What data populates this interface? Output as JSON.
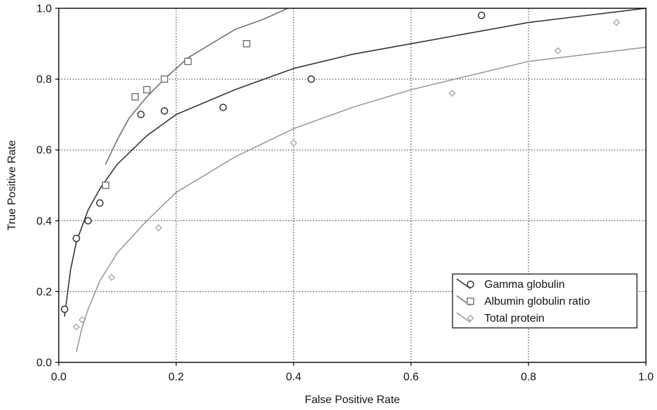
{
  "chart_data": {
    "type": "scatter",
    "title": "",
    "xlabel": "False Positive Rate",
    "ylabel": "True Positive Rate",
    "xlim": [
      0,
      1
    ],
    "ylim": [
      0,
      1
    ],
    "x_ticks": [
      "0.0",
      "0.2",
      "0.4",
      "0.6",
      "0.8",
      "1.0"
    ],
    "y_ticks": [
      "0.0",
      "0.2",
      "0.4",
      "0.6",
      "0.8",
      "1.0"
    ],
    "grid": true,
    "legend_position": "bottom-right",
    "series": [
      {
        "name": "Gamma globulin",
        "marker": "circle",
        "color": "#333333",
        "points": [
          [
            0.01,
            0.15
          ],
          [
            0.03,
            0.35
          ],
          [
            0.05,
            0.4
          ],
          [
            0.07,
            0.45
          ],
          [
            0.14,
            0.7
          ],
          [
            0.18,
            0.71
          ],
          [
            0.28,
            0.72
          ],
          [
            0.43,
            0.8
          ],
          [
            0.72,
            0.98
          ]
        ],
        "fit_curve": [
          [
            0.01,
            0.13
          ],
          [
            0.02,
            0.26
          ],
          [
            0.03,
            0.34
          ],
          [
            0.05,
            0.43
          ],
          [
            0.07,
            0.49
          ],
          [
            0.1,
            0.56
          ],
          [
            0.15,
            0.64
          ],
          [
            0.2,
            0.7
          ],
          [
            0.3,
            0.77
          ],
          [
            0.4,
            0.83
          ],
          [
            0.5,
            0.87
          ],
          [
            0.6,
            0.9
          ],
          [
            0.7,
            0.93
          ],
          [
            0.8,
            0.96
          ],
          [
            0.9,
            0.98
          ],
          [
            1.0,
            1.0
          ]
        ]
      },
      {
        "name": "Albumin globulin ratio",
        "marker": "square",
        "color": "#6f6f6f",
        "points": [
          [
            0.08,
            0.5
          ],
          [
            0.13,
            0.75
          ],
          [
            0.15,
            0.77
          ],
          [
            0.18,
            0.8
          ],
          [
            0.22,
            0.85
          ],
          [
            0.32,
            0.9
          ]
        ],
        "fit_curve": [
          [
            0.08,
            0.56
          ],
          [
            0.1,
            0.63
          ],
          [
            0.12,
            0.69
          ],
          [
            0.15,
            0.75
          ],
          [
            0.18,
            0.8
          ],
          [
            0.22,
            0.86
          ],
          [
            0.26,
            0.9
          ],
          [
            0.3,
            0.94
          ],
          [
            0.35,
            0.97
          ],
          [
            0.39,
            1.0
          ]
        ]
      },
      {
        "name": "Total protein",
        "marker": "diamond",
        "color": "#999999",
        "points": [
          [
            0.03,
            0.1
          ],
          [
            0.04,
            0.12
          ],
          [
            0.09,
            0.24
          ],
          [
            0.17,
            0.38
          ],
          [
            0.4,
            0.62
          ],
          [
            0.67,
            0.76
          ],
          [
            0.85,
            0.88
          ],
          [
            0.95,
            0.96
          ]
        ],
        "fit_curve": [
          [
            0.03,
            0.03
          ],
          [
            0.04,
            0.1
          ],
          [
            0.05,
            0.15
          ],
          [
            0.07,
            0.23
          ],
          [
            0.1,
            0.31
          ],
          [
            0.15,
            0.4
          ],
          [
            0.2,
            0.48
          ],
          [
            0.3,
            0.58
          ],
          [
            0.4,
            0.66
          ],
          [
            0.5,
            0.72
          ],
          [
            0.6,
            0.77
          ],
          [
            0.7,
            0.81
          ],
          [
            0.8,
            0.85
          ],
          [
            0.9,
            0.87
          ],
          [
            1.0,
            0.89
          ]
        ]
      }
    ]
  }
}
